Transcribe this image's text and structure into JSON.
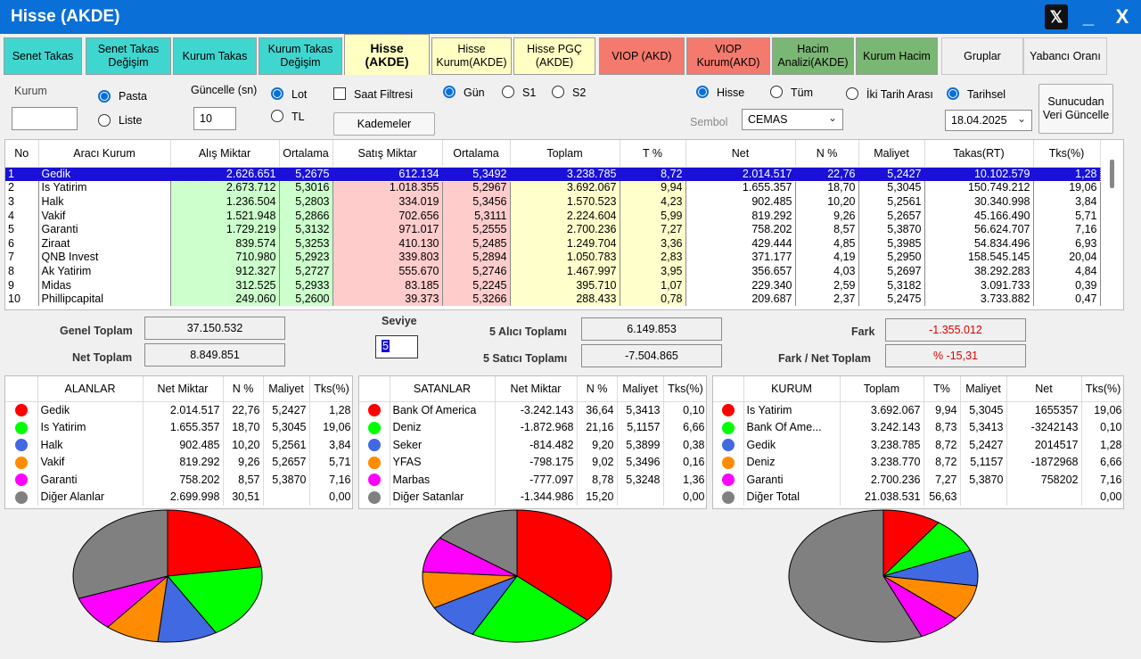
{
  "window": {
    "title": "Hisse (AKDE)",
    "x_logo": "𝕏",
    "min": "_",
    "close": "X"
  },
  "tabs": [
    {
      "label": "Senet Takas",
      "color": "teal"
    },
    {
      "label": "Senet Takas Değişim",
      "color": "teal"
    },
    {
      "label": "Kurum Takas",
      "color": "teal"
    },
    {
      "label": "Kurum Takas Değişim",
      "color": "teal"
    },
    {
      "label": "Hisse (AKDE)",
      "color": "active"
    },
    {
      "label": "Hisse Kurum(AKDE)",
      "color": "yellow"
    },
    {
      "label": "Hisse PGÇ (AKDE)",
      "color": "yellow"
    },
    {
      "label": "VIOP (AKD)",
      "color": "red"
    },
    {
      "label": "VIOP Kurum(AKD)",
      "color": "red"
    },
    {
      "label": "Hacim Analizi(AKDE)",
      "color": "green"
    },
    {
      "label": "Kurum Hacim",
      "color": "green"
    },
    {
      "label": "Gruplar",
      "color": "plain"
    },
    {
      "label": "Yabancı Oranı",
      "color": "plain"
    }
  ],
  "controls": {
    "kurum_label": "Kurum",
    "kurum_value": "",
    "pasta": "Pasta",
    "liste": "Liste",
    "guncelle_label": "Güncelle (sn)",
    "guncelle_value": "10",
    "lot": "Lot",
    "tl": "TL",
    "saat_filtresi": "Saat Filtresi",
    "kademeler": "Kademeler",
    "gun": "Gün",
    "s1": "S1",
    "s2": "S2",
    "hisse": "Hisse",
    "tum": "Tüm",
    "iki_tarih": "İki Tarih Arası",
    "tarihsel": "Tarihsel",
    "sembol_label": "Sembol",
    "sembol_value": "CEMAS",
    "tarih_value": "18.04.2025",
    "sunucudan": "Sunucudan Veri Güncelle"
  },
  "main_table": {
    "headers": [
      "No",
      "Aracı Kurum",
      "Alış Miktar",
      "Ortalama",
      "Satış Miktar",
      "Ortalama",
      "Toplam",
      "T %",
      "Net",
      "N %",
      "Maliyet",
      "Takas(RT)",
      "Tks(%)"
    ],
    "rows": [
      [
        "1",
        "Gedik",
        "2.626.651",
        "5,2675",
        "612.134",
        "5,3492",
        "3.238.785",
        "8,72",
        "2.014.517",
        "22,76",
        "5,2427",
        "10.102.579",
        "1,28"
      ],
      [
        "2",
        "Is Yatirim",
        "2.673.712",
        "5,3016",
        "1.018.355",
        "5,2967",
        "3.692.067",
        "9,94",
        "1.655.357",
        "18,70",
        "5,3045",
        "150.749.212",
        "19,06"
      ],
      [
        "3",
        "Halk",
        "1.236.504",
        "5,2803",
        "334.019",
        "5,3456",
        "1.570.523",
        "4,23",
        "902.485",
        "10,20",
        "5,2561",
        "30.340.998",
        "3,84"
      ],
      [
        "4",
        "Vakif",
        "1.521.948",
        "5,2866",
        "702.656",
        "5,3111",
        "2.224.604",
        "5,99",
        "819.292",
        "9,26",
        "5,2657",
        "45.166.490",
        "5,71"
      ],
      [
        "5",
        "Garanti",
        "1.729.219",
        "5,3132",
        "971.017",
        "5,2555",
        "2.700.236",
        "7,27",
        "758.202",
        "8,57",
        "5,3870",
        "56.624.707",
        "7,16"
      ],
      [
        "6",
        "Ziraat",
        "839.574",
        "5,3253",
        "410.130",
        "5,2485",
        "1.249.704",
        "3,36",
        "429.444",
        "4,85",
        "5,3985",
        "54.834.496",
        "6,93"
      ],
      [
        "7",
        "QNB Invest",
        "710.980",
        "5,2923",
        "339.803",
        "5,2894",
        "1.050.783",
        "2,83",
        "371.177",
        "4,19",
        "5,2950",
        "158.545.145",
        "20,04"
      ],
      [
        "8",
        "Ak Yatirim",
        "912.327",
        "5,2727",
        "555.670",
        "5,2746",
        "1.467.997",
        "3,95",
        "356.657",
        "4,03",
        "5,2697",
        "38.292.283",
        "4,84"
      ],
      [
        "9",
        "Midas",
        "312.525",
        "5,2933",
        "83.185",
        "5,2245",
        "395.710",
        "1,07",
        "229.340",
        "2,59",
        "5,3182",
        "3.091.733",
        "0,39"
      ],
      [
        "10",
        "Phillipcapital",
        "249.060",
        "5,2600",
        "39.373",
        "5,3266",
        "288.433",
        "0,78",
        "209.687",
        "2,37",
        "5,2475",
        "3.733.882",
        "0,47"
      ]
    ]
  },
  "summary": {
    "genel_toplam_label": "Genel Toplam",
    "genel_toplam": "37.150.532",
    "net_toplam_label": "Net Toplam",
    "net_toplam": "8.849.851",
    "seviye_label": "Seviye",
    "seviye_value": "5",
    "alici_label": "5  Alıcı Toplamı",
    "alici_value": "6.149.853",
    "satici_label": "5  Satıcı Toplamı",
    "satici_value": "-7.504.865",
    "fark_label": "Fark",
    "fark_value": "-1.355.012",
    "fark_net_label": "Fark / Net Toplam",
    "fark_net_value": "% -15,31"
  },
  "colors": [
    "#ff0000",
    "#00ff00",
    "#4169e1",
    "#ff8c00",
    "#ff00ff",
    "#808080"
  ],
  "alanlar": {
    "headers": [
      "",
      "ALANLAR",
      "Net Miktar",
      "N %",
      "Maliyet",
      "Tks(%)"
    ],
    "rows": [
      [
        "Gedik",
        "2.014.517",
        "22,76",
        "5,2427",
        "1,28"
      ],
      [
        "Is Yatirim",
        "1.655.357",
        "18,70",
        "5,3045",
        "19,06"
      ],
      [
        "Halk",
        "902.485",
        "10,20",
        "5,2561",
        "3,84"
      ],
      [
        "Vakif",
        "819.292",
        "9,26",
        "5,2657",
        "5,71"
      ],
      [
        "Garanti",
        "758.202",
        "8,57",
        "5,3870",
        "7,16"
      ],
      [
        "Diğer Alanlar",
        "2.699.998",
        "30,51",
        "",
        "0,00"
      ]
    ],
    "shares": [
      22.76,
      18.7,
      10.2,
      9.26,
      8.57,
      30.51
    ]
  },
  "satanlar": {
    "headers": [
      "",
      "SATANLAR",
      "Net Miktar",
      "N %",
      "Maliyet",
      "Tks(%)"
    ],
    "rows": [
      [
        "Bank Of America",
        "-3.242.143",
        "36,64",
        "5,3413",
        "0,10"
      ],
      [
        "Deniz",
        "-1.872.968",
        "21,16",
        "5,1157",
        "6,66"
      ],
      [
        "Seker",
        "-814.482",
        "9,20",
        "5,3899",
        "0,38"
      ],
      [
        "YFAS",
        "-798.175",
        "9,02",
        "5,3496",
        "0,16"
      ],
      [
        "Marbas",
        "-777.097",
        "8,78",
        "5,3248",
        "1,36"
      ],
      [
        "Diğer Satanlar",
        "-1.344.986",
        "15,20",
        "",
        "0,00"
      ]
    ],
    "shares": [
      36.64,
      21.16,
      9.2,
      9.02,
      8.78,
      15.2
    ]
  },
  "kurum": {
    "headers": [
      "",
      "KURUM",
      "Toplam",
      "T%",
      "Maliyet",
      "Net",
      "Tks(%)"
    ],
    "rows": [
      [
        "Is Yatirim",
        "3.692.067",
        "9,94",
        "5,3045",
        "1655357",
        "19,06"
      ],
      [
        "Bank Of Ame...",
        "3.242.143",
        "8,73",
        "5,3413",
        "-3242143",
        "0,10"
      ],
      [
        "Gedik",
        "3.238.785",
        "8,72",
        "5,2427",
        "2014517",
        "1,28"
      ],
      [
        "Deniz",
        "3.238.770",
        "8,72",
        "5,1157",
        "-1872968",
        "6,66"
      ],
      [
        "Garanti",
        "2.700.236",
        "7,27",
        "5,3870",
        "758202",
        "7,16"
      ],
      [
        "Diğer Total",
        "21.038.531",
        "56,63",
        "",
        "",
        "0,00"
      ]
    ],
    "shares": [
      9.94,
      8.73,
      8.72,
      8.72,
      7.27,
      56.63
    ]
  }
}
